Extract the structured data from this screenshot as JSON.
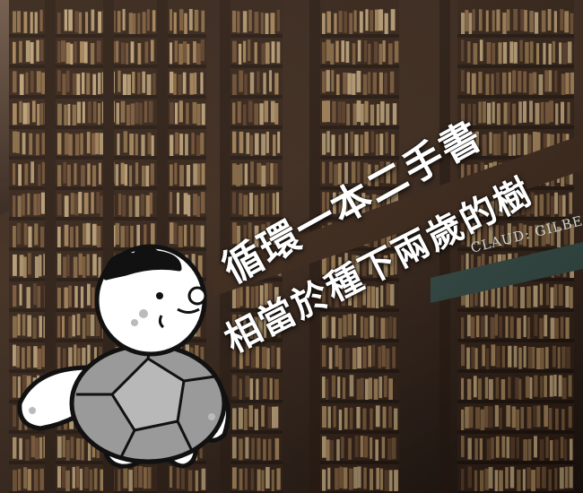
{
  "headline": {
    "line1": "循環一本二手書",
    "line2": "相當於種下兩歲的樹"
  },
  "scene_text": {
    "plaque": "CLAUD: GILBE"
  }
}
